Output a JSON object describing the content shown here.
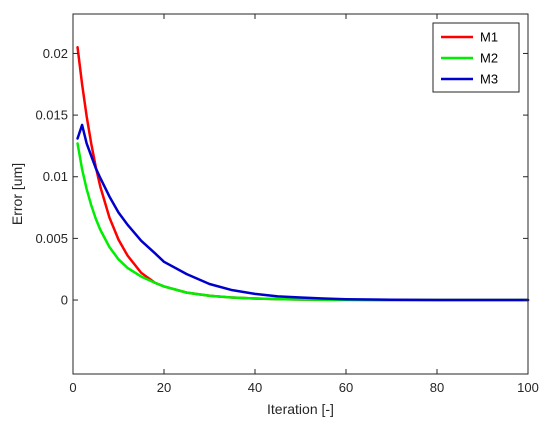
{
  "chart_data": {
    "type": "line",
    "title": "",
    "xlabel": "Iteration [-]",
    "ylabel": "Error [um]",
    "xlim": [
      0,
      100
    ],
    "ylim": [
      -0.006,
      0.0232
    ],
    "xticks": [
      0,
      20,
      40,
      60,
      80,
      100
    ],
    "yticks": [
      0,
      0.005,
      0.01,
      0.015,
      0.02
    ],
    "xtick_labels": [
      "0",
      "20",
      "40",
      "60",
      "80",
      "100"
    ],
    "ytick_labels": [
      "0",
      "0.005",
      "0.01",
      "0.015",
      "0.02"
    ],
    "grid": false,
    "legend_position": "top-right",
    "x": [
      1,
      2,
      3,
      4,
      5,
      6,
      8,
      10,
      12,
      15,
      18,
      20,
      25,
      30,
      35,
      40,
      45,
      50,
      55,
      60,
      70,
      80,
      90,
      100
    ],
    "series": [
      {
        "name": "M1",
        "color": "#ff0000",
        "values": [
          0.0205,
          0.0175,
          0.0149,
          0.0127,
          0.0108,
          0.0092,
          0.0067,
          0.0049,
          0.0036,
          0.0022,
          0.0014,
          0.0011,
          0.0006,
          0.00035,
          0.0002,
          0.00012,
          7e-05,
          4e-05,
          2e-05,
          1e-05,
          0.0,
          0.0,
          0.0,
          0.0
        ]
      },
      {
        "name": "M2",
        "color": "#00ee00",
        "values": [
          0.0127,
          0.0106,
          0.009,
          0.0077,
          0.0066,
          0.0057,
          0.0043,
          0.0033,
          0.0026,
          0.0019,
          0.0014,
          0.0011,
          0.0006,
          0.00035,
          0.0002,
          0.00012,
          7e-05,
          4e-05,
          2e-05,
          1e-05,
          0.0,
          0.0,
          0.0,
          0.0
        ]
      },
      {
        "name": "M3",
        "color": "#0000cc",
        "values": [
          0.0131,
          0.0142,
          0.0127,
          0.0117,
          0.0107,
          0.0099,
          0.0084,
          0.0071,
          0.0061,
          0.0048,
          0.0038,
          0.0031,
          0.0021,
          0.0013,
          0.0008,
          0.0005,
          0.0003,
          0.0002,
          0.00012,
          6e-05,
          2e-05,
          0.0,
          0.0,
          0.0
        ]
      }
    ]
  }
}
